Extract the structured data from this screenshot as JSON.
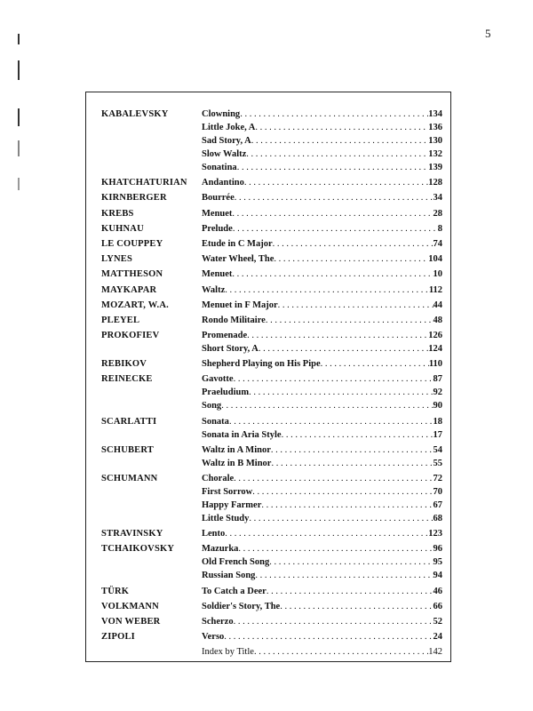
{
  "page_number": "5",
  "groups": [
    {
      "composer": "KABALEVSKY",
      "entries": [
        {
          "title": "Clowning",
          "page": "134"
        },
        {
          "title": "Little Joke, A",
          "page": "136"
        },
        {
          "title": "Sad Story, A",
          "page": "130"
        },
        {
          "title": "Slow Waltz",
          "page": "132"
        },
        {
          "title": "Sonatina",
          "page": "139"
        }
      ]
    },
    {
      "composer": "KHATCHATURIAN",
      "entries": [
        {
          "title": "Andantino",
          "page": "128"
        }
      ]
    },
    {
      "composer": "KIRNBERGER",
      "entries": [
        {
          "title": "Bourrée",
          "page": "34"
        }
      ]
    },
    {
      "composer": "KREBS",
      "entries": [
        {
          "title": "Menuet",
          "page": "28"
        }
      ]
    },
    {
      "composer": "KUHNAU",
      "entries": [
        {
          "title": "Prelude",
          "page": "8"
        }
      ]
    },
    {
      "composer": "LE COUPPEY",
      "entries": [
        {
          "title": "Etude in C Major",
          "page": "74"
        }
      ]
    },
    {
      "composer": "LYNES",
      "entries": [
        {
          "title": "Water Wheel, The",
          "page": "104"
        }
      ]
    },
    {
      "composer": "MATTHESON",
      "entries": [
        {
          "title": "Menuet",
          "page": "10"
        }
      ]
    },
    {
      "composer": "MAYKAPAR",
      "entries": [
        {
          "title": "Waltz",
          "page": "112"
        }
      ]
    },
    {
      "composer": "MOZART, W.A.",
      "entries": [
        {
          "title": "Menuet in F Major",
          "page": "44"
        }
      ]
    },
    {
      "composer": "PLEYEL",
      "entries": [
        {
          "title": "Rondo Militaire",
          "page": "48"
        }
      ]
    },
    {
      "composer": "PROKOFIEV",
      "entries": [
        {
          "title": "Promenade",
          "page": "126"
        },
        {
          "title": "Short Story, A",
          "page": "124"
        }
      ]
    },
    {
      "composer": "REBIKOV",
      "entries": [
        {
          "title": "Shepherd Playing on His Pipe",
          "page": "110"
        }
      ]
    },
    {
      "composer": "REINECKE",
      "entries": [
        {
          "title": "Gavotte",
          "page": "87"
        },
        {
          "title": "Praeludium",
          "page": "92"
        },
        {
          "title": "Song",
          "page": "90"
        }
      ]
    },
    {
      "composer": "SCARLATTI",
      "entries": [
        {
          "title": "Sonata",
          "page": "18"
        },
        {
          "title": "Sonata in Aria Style",
          "page": "17"
        }
      ]
    },
    {
      "composer": "SCHUBERT",
      "entries": [
        {
          "title": "Waltz in A Minor",
          "page": "54"
        },
        {
          "title": "Waltz in B Minor",
          "page": "55"
        }
      ]
    },
    {
      "composer": "SCHUMANN",
      "entries": [
        {
          "title": "Chorale",
          "page": "72"
        },
        {
          "title": "First Sorrow",
          "page": "70"
        },
        {
          "title": "Happy Farmer",
          "page": "67"
        },
        {
          "title": "Little Study",
          "page": "68"
        }
      ]
    },
    {
      "composer": "STRAVINSKY",
      "entries": [
        {
          "title": "Lento",
          "page": "123"
        }
      ]
    },
    {
      "composer": "TCHAIKOVSKY",
      "entries": [
        {
          "title": "Mazurka",
          "page": "96"
        },
        {
          "title": "Old French Song",
          "page": "95"
        },
        {
          "title": "Russian Song",
          "page": "94"
        }
      ]
    },
    {
      "composer": "TÜRK",
      "entries": [
        {
          "title": "To Catch a Deer",
          "page": "46"
        }
      ]
    },
    {
      "composer": "VOLKMANN",
      "entries": [
        {
          "title": "Soldier's Story, The",
          "page": "66"
        }
      ]
    },
    {
      "composer": "VON WEBER",
      "entries": [
        {
          "title": "Scherzo",
          "page": "52"
        }
      ]
    },
    {
      "composer": "ZIPOLI",
      "entries": [
        {
          "title": "Verso",
          "page": "24"
        }
      ]
    }
  ],
  "index_entry": {
    "title": "Index by Title",
    "page": "142"
  }
}
